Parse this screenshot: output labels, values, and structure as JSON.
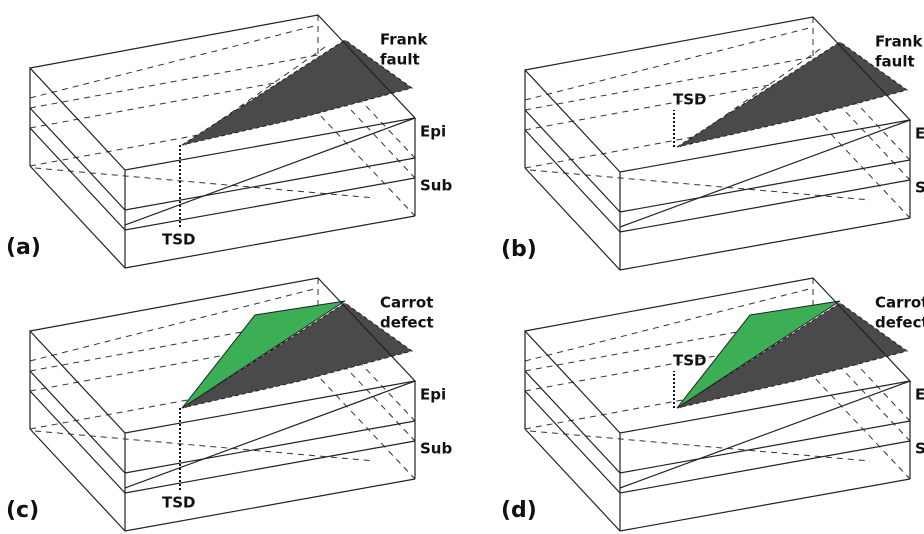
{
  "panels": [
    {
      "label": "(a)",
      "defect": [
        "Frank",
        "fault"
      ],
      "layers": [
        "Epi",
        "Sub"
      ],
      "dislocation": "TSD"
    },
    {
      "label": "(b)",
      "defect": [
        "Frank",
        "fault"
      ],
      "layers": [
        "Epi",
        "Sub"
      ],
      "dislocation": "TSD"
    },
    {
      "label": "(c)",
      "defect": [
        "Carrot",
        "defect"
      ],
      "layers": [
        "Epi",
        "Sub"
      ],
      "dislocation": "TSD"
    },
    {
      "label": "(d)",
      "defect": [
        "Carrot",
        "defect"
      ],
      "layers": [
        "Epi",
        "Sub"
      ],
      "dislocation": "TSD"
    }
  ]
}
